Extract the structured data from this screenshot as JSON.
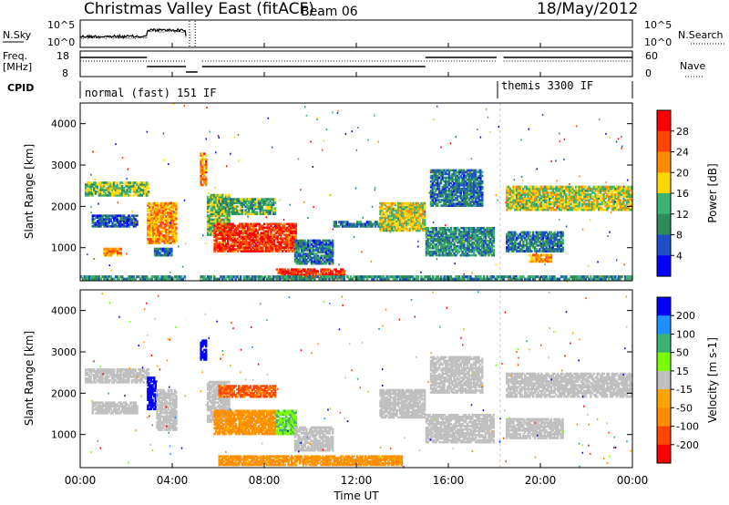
{
  "header": {
    "title": "Christmas Valley East (fitACF)",
    "beam": "Beam 06",
    "date": "18/May/2012"
  },
  "noise_panel": {
    "left_label": "N.Sky",
    "right_label": "N.Search",
    "left_ticks": [
      "10^5",
      "10^0"
    ],
    "right_ticks": [
      "10^5",
      "10^0"
    ]
  },
  "freq_panel": {
    "left_label_line1": "Freq.",
    "left_label_line2": "[MHz]",
    "right_label": "Nave",
    "left_ticks": [
      "18",
      "8"
    ],
    "right_ticks": [
      "60",
      "0"
    ]
  },
  "cpid": {
    "label": "CPID",
    "segments": [
      {
        "text": "normal (fast) 151 IF",
        "start": 0,
        "end": 18
      },
      {
        "text": "themis 3300 IF",
        "start": 18,
        "end": 24
      }
    ]
  },
  "chart_data": [
    {
      "type": "heatmap",
      "name": "Power",
      "xlabel": "Time UT",
      "ylabel": "Slant Range [km]",
      "x_ticks": [
        "00:00",
        "04:00",
        "08:00",
        "12:00",
        "16:00",
        "20:00",
        "00:00"
      ],
      "xlim_hours": [
        0,
        24
      ],
      "y_ticks": [
        1000,
        2000,
        3000,
        4000
      ],
      "ylim": [
        200,
        4500
      ],
      "colorbar_label": "Power [dB]",
      "colorbar_ticks": [
        4,
        8,
        12,
        16,
        20,
        24,
        28
      ],
      "colorbar_range": [
        0,
        30
      ],
      "colors": [
        "#0000ff",
        "#1f4fc8",
        "#2e8b57",
        "#3cb371",
        "#ffd700",
        "#ff8c00",
        "#ff4500",
        "#ff0000"
      ],
      "regions": [
        {
          "t0": 0.2,
          "t1": 3.0,
          "r0": 2250,
          "r1": 2600,
          "power": 14
        },
        {
          "t0": 0.5,
          "t1": 2.5,
          "r0": 1500,
          "r1": 1800,
          "power": 6
        },
        {
          "t0": 1.0,
          "t1": 1.8,
          "r0": 800,
          "r1": 1000,
          "power": 20
        },
        {
          "t0": 2.9,
          "t1": 4.2,
          "r0": 1100,
          "r1": 2100,
          "power": 20
        },
        {
          "t0": 3.2,
          "t1": 4.0,
          "r0": 800,
          "r1": 1000,
          "power": 8
        },
        {
          "t0": 5.2,
          "t1": 5.5,
          "r0": 2500,
          "r1": 3300,
          "power": 22
        },
        {
          "t0": 5.5,
          "t1": 6.5,
          "r0": 1300,
          "r1": 2300,
          "power": 14
        },
        {
          "t0": 6.0,
          "t1": 8.5,
          "r0": 1800,
          "r1": 2200,
          "power": 12
        },
        {
          "t0": 5.8,
          "t1": 9.4,
          "r0": 900,
          "r1": 1600,
          "power": 26
        },
        {
          "t0": 9.3,
          "t1": 11.0,
          "r0": 600,
          "r1": 1200,
          "power": 8
        },
        {
          "t0": 8.5,
          "t1": 11.5,
          "r0": 250,
          "r1": 500,
          "power": 26
        },
        {
          "t0": 11.0,
          "t1": 13.0,
          "r0": 1500,
          "r1": 1650,
          "power": 8
        },
        {
          "t0": 13.0,
          "t1": 15.0,
          "r0": 1400,
          "r1": 2100,
          "power": 16
        },
        {
          "t0": 15.0,
          "t1": 18.0,
          "r0": 800,
          "r1": 1500,
          "power": 10
        },
        {
          "t0": 15.2,
          "t1": 17.5,
          "r0": 2000,
          "r1": 2900,
          "power": 8
        },
        {
          "t0": 18.5,
          "t1": 24.0,
          "r0": 1900,
          "r1": 2500,
          "power": 16
        },
        {
          "t0": 18.5,
          "t1": 21.0,
          "r0": 900,
          "r1": 1400,
          "power": 8
        },
        {
          "t0": 19.5,
          "t1": 20.5,
          "r0": 650,
          "r1": 850,
          "power": 20
        },
        {
          "t0": 0.0,
          "t1": 24.0,
          "r0": 220,
          "r1": 330,
          "power": 10
        }
      ]
    },
    {
      "type": "heatmap",
      "name": "Velocity",
      "xlabel": "Time UT",
      "ylabel": "Slant Range [km]",
      "x_ticks": [
        "00:00",
        "04:00",
        "08:00",
        "12:00",
        "16:00",
        "20:00",
        "00:00"
      ],
      "xlim_hours": [
        0,
        24
      ],
      "y_ticks": [
        1000,
        2000,
        3000,
        4000
      ],
      "ylim": [
        200,
        4500
      ],
      "colorbar_label": "Velocity [m s-1]",
      "colorbar_ticks": [
        "200",
        "100",
        "50",
        "15",
        "-15",
        "-50",
        "-100",
        "-200"
      ],
      "colorbar_range": [
        -250,
        250
      ],
      "colors": [
        "#ff0000",
        "#ff4500",
        "#ff8c00",
        "#ffa500",
        "#c0c0c0",
        "#7cfc00",
        "#3cb371",
        "#1e90ff",
        "#0000ff"
      ],
      "regions": [
        {
          "t0": 0.2,
          "t1": 3.0,
          "r0": 2250,
          "r1": 2600,
          "vel": 0
        },
        {
          "t0": 0.5,
          "t1": 2.5,
          "r0": 1500,
          "r1": 1800,
          "vel": 0
        },
        {
          "t0": 2.9,
          "t1": 3.3,
          "r0": 1600,
          "r1": 2400,
          "vel": 200
        },
        {
          "t0": 3.3,
          "t1": 4.2,
          "r0": 1100,
          "r1": 2100,
          "vel": 0
        },
        {
          "t0": 5.2,
          "t1": 5.5,
          "r0": 2800,
          "r1": 3300,
          "vel": 220
        },
        {
          "t0": 5.5,
          "t1": 6.5,
          "r0": 1300,
          "r1": 2300,
          "vel": 0
        },
        {
          "t0": 6.0,
          "t1": 8.5,
          "r0": 1900,
          "r1": 2200,
          "vel": -80
        },
        {
          "t0": 5.8,
          "t1": 8.5,
          "r0": 1000,
          "r1": 1600,
          "vel": -40
        },
        {
          "t0": 8.5,
          "t1": 9.4,
          "r0": 1000,
          "r1": 1600,
          "vel": 30
        },
        {
          "t0": 9.3,
          "t1": 11.0,
          "r0": 600,
          "r1": 1200,
          "vel": 0
        },
        {
          "t0": 6.0,
          "t1": 14.0,
          "r0": 250,
          "r1": 500,
          "vel": -40
        },
        {
          "t0": 13.0,
          "t1": 15.0,
          "r0": 1400,
          "r1": 2100,
          "vel": 0
        },
        {
          "t0": 15.0,
          "t1": 18.0,
          "r0": 800,
          "r1": 1500,
          "vel": 0
        },
        {
          "t0": 15.2,
          "t1": 17.5,
          "r0": 2000,
          "r1": 2900,
          "vel": 0
        },
        {
          "t0": 18.5,
          "t1": 24.0,
          "r0": 1900,
          "r1": 2500,
          "vel": 0
        },
        {
          "t0": 18.5,
          "t1": 21.0,
          "r0": 900,
          "r1": 1400,
          "vel": 0
        }
      ]
    }
  ]
}
